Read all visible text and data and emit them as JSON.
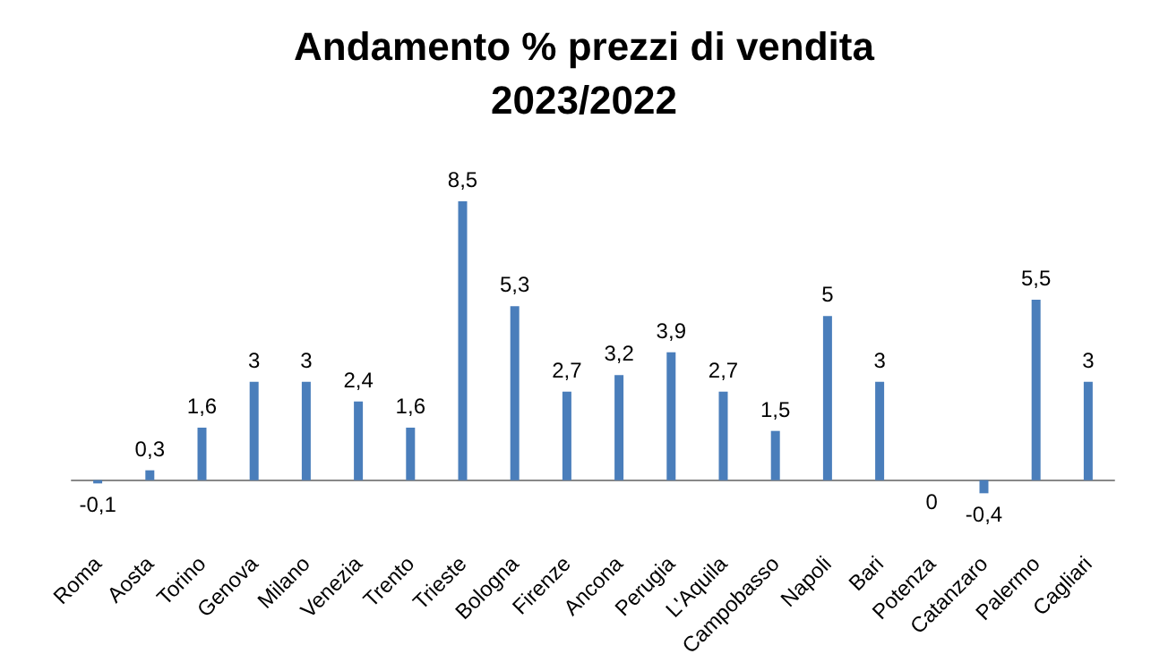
{
  "chart_data": {
    "type": "bar",
    "title": "Andamento % prezzi di vendita\n2023/2022",
    "categories": [
      "Roma",
      "Aosta",
      "Torino",
      "Genova",
      "Milano",
      "Venezia",
      "Trento",
      "Trieste",
      "Bologna",
      "Firenze",
      "Ancona",
      "Perugia",
      "L'Aquila",
      "Campobasso",
      "Napoli",
      "Bari",
      "Potenza",
      "Catanzaro",
      "Palermo",
      "Cagliari"
    ],
    "values": [
      -0.1,
      0.3,
      1.6,
      3,
      3,
      2.4,
      1.6,
      8.5,
      5.3,
      2.7,
      3.2,
      3.9,
      2.7,
      1.5,
      5,
      3,
      0,
      -0.4,
      5.5,
      3
    ],
    "value_labels": [
      "-0,1",
      "0,3",
      "1,6",
      "3",
      "3",
      "2,4",
      "1,6",
      "8,5",
      "5,3",
      "2,7",
      "3,2",
      "3,9",
      "2,7",
      "1,5",
      "5",
      "3",
      "0",
      "-0,4",
      "5,5",
      "3"
    ],
    "color": "#4a7ebb"
  }
}
